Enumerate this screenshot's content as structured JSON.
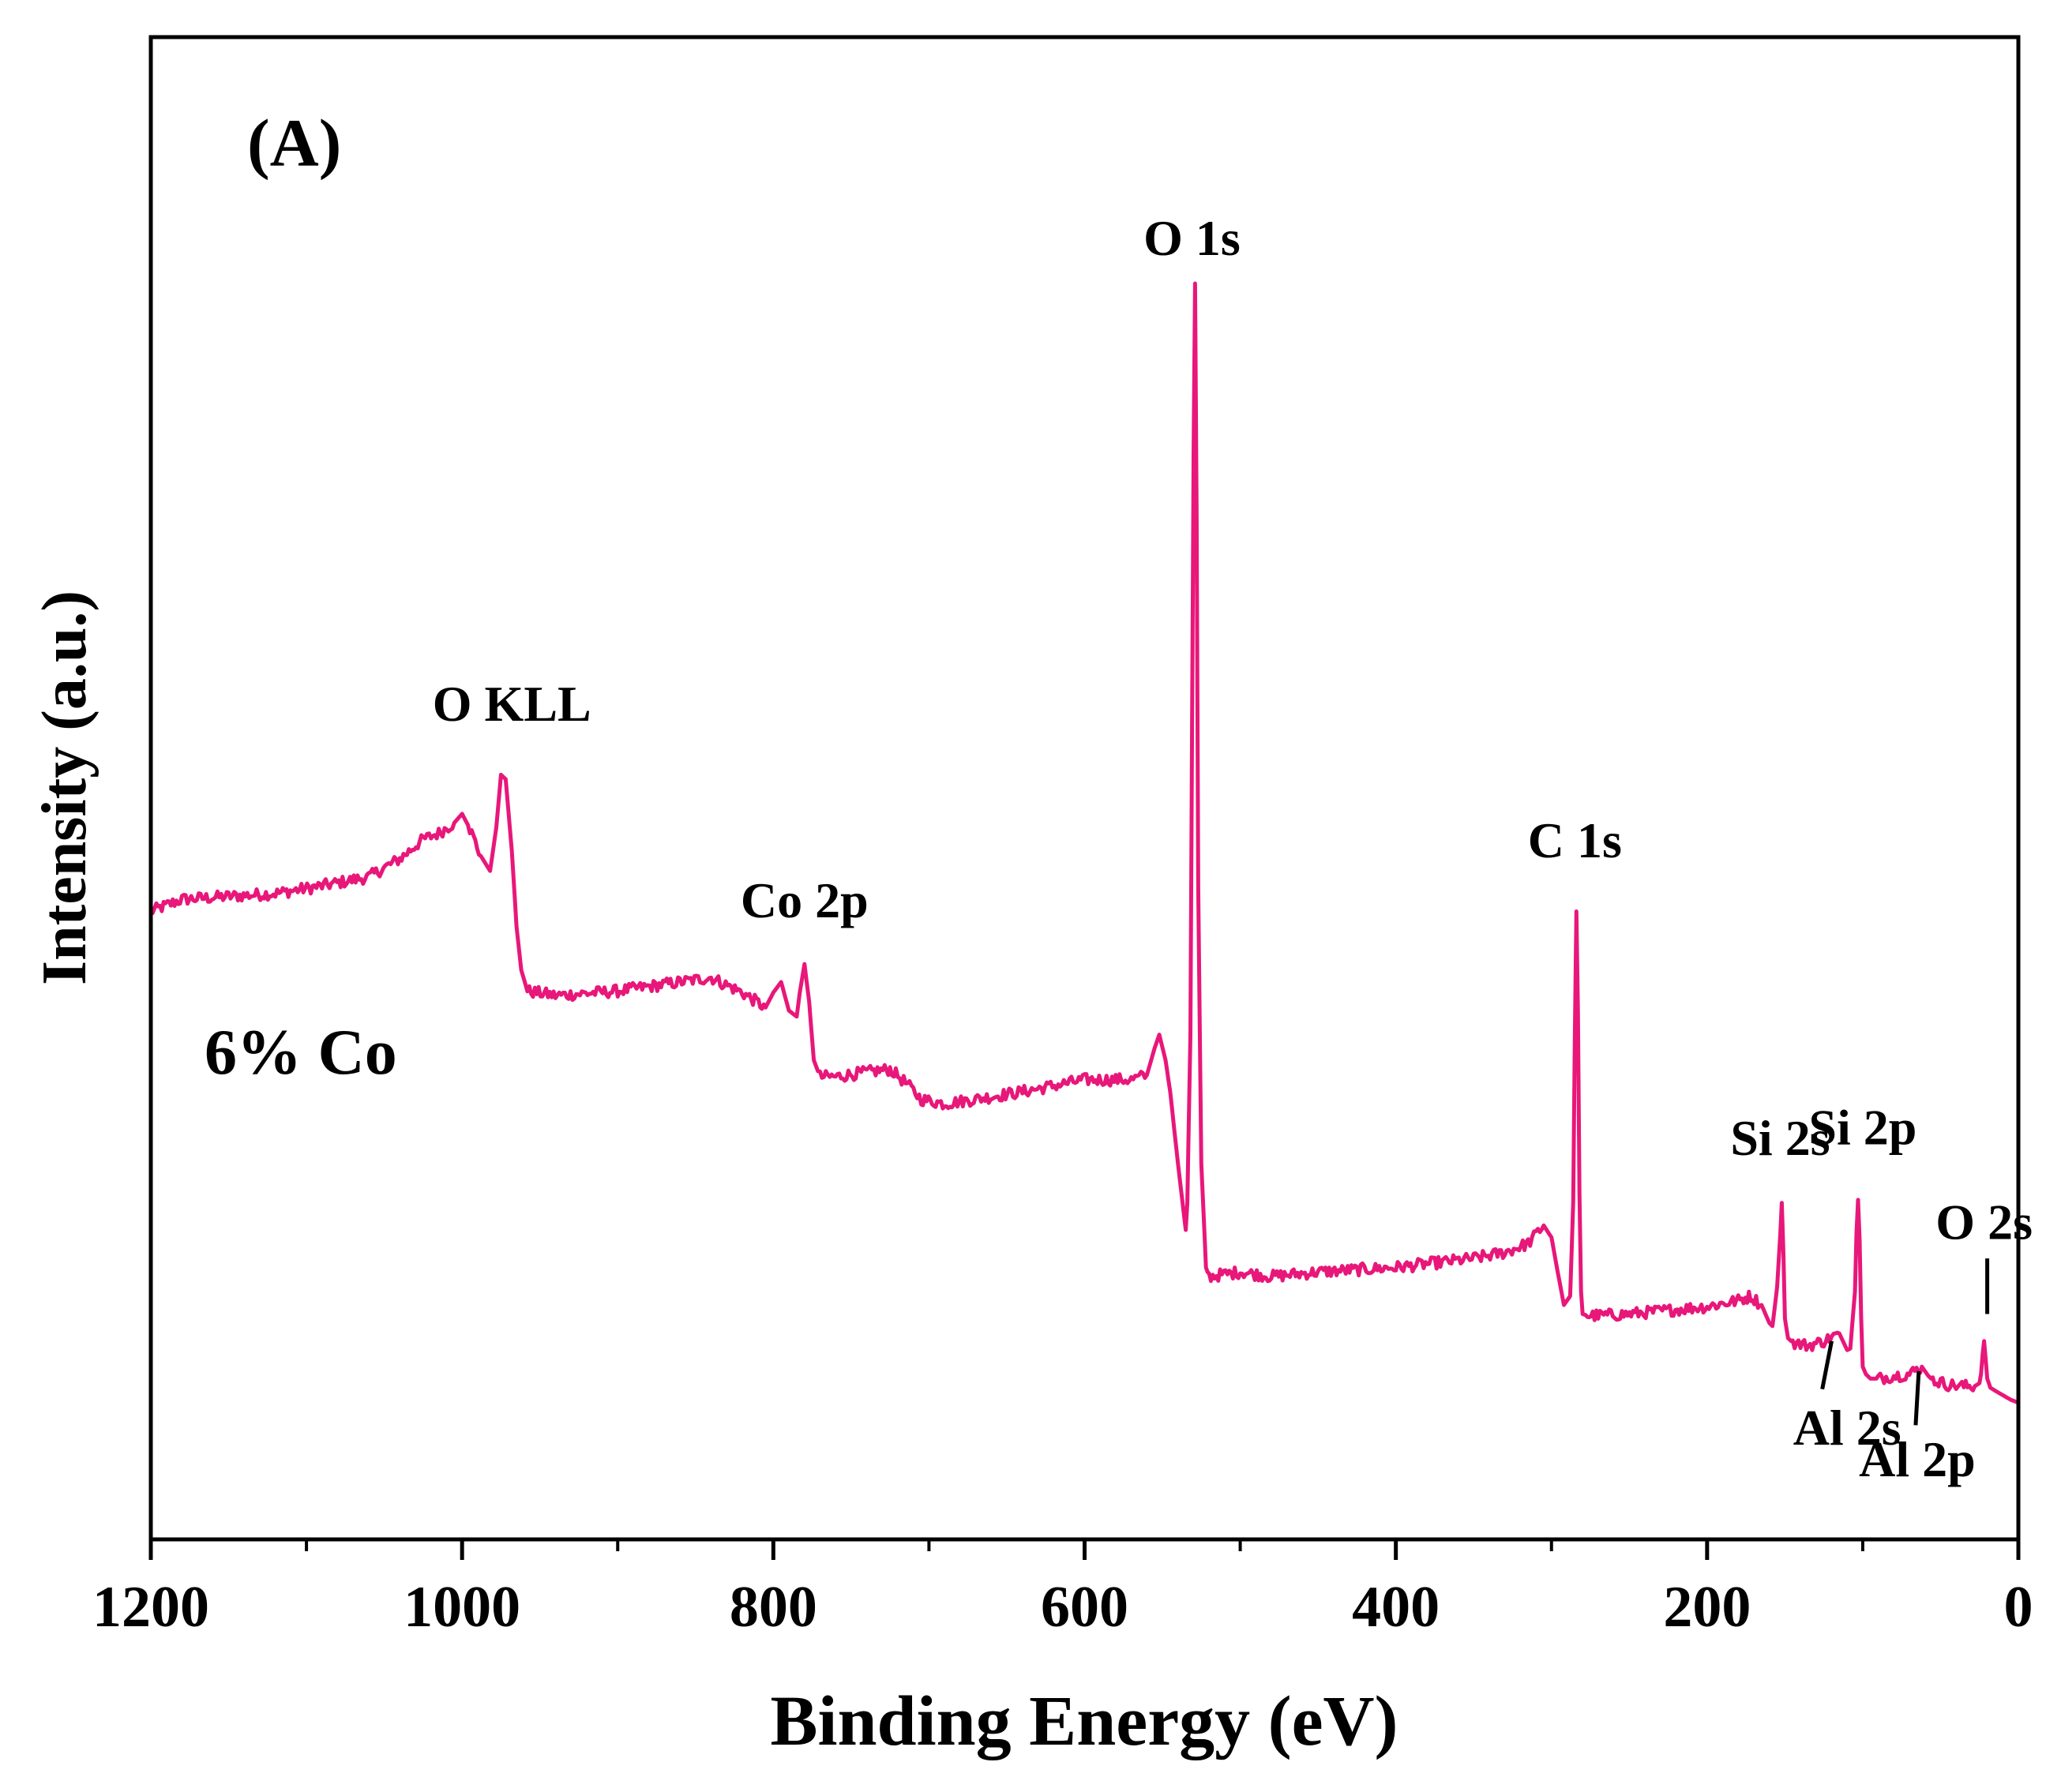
{
  "chart_data": {
    "type": "line",
    "panel_label": "(A)",
    "sample_label": "6% Co",
    "xlabel": "Binding Energy (eV)",
    "ylabel": "Intensity (a.u.)",
    "xlim": [
      1200,
      0
    ],
    "ylim": [
      0,
      100
    ],
    "x_ticks": [
      1200,
      1000,
      800,
      600,
      400,
      200,
      0
    ],
    "x_tick_labels": [
      "1200",
      "1000",
      "800",
      "600",
      "400",
      "200",
      "0"
    ],
    "x_minor_ticks": [
      1100,
      900,
      700,
      500,
      300,
      100
    ],
    "series": [
      {
        "name": "6% Co",
        "color": "#e8177a",
        "x": [
          1200,
          1180,
          1150,
          1120,
          1090,
          1060,
          1040,
          1025,
          1015,
          1005,
          1000,
          995,
          988,
          982,
          978,
          975,
          972,
          968,
          965,
          962,
          958,
          940,
          900,
          860,
          840,
          820,
          805,
          800,
          795,
          790,
          785,
          783,
          780,
          777,
          774,
          770,
          760,
          740,
          725,
          715,
          705,
          690,
          670,
          640,
          600,
          580,
          570,
          560,
          555,
          552,
          548,
          545,
          540,
          535,
          534,
          532,
          531,
          530,
          529,
          528,
          527,
          525,
          522,
          520,
          500,
          480,
          450,
          400,
          350,
          330,
          315,
          305,
          300,
          296,
          292,
          288,
          286,
          285,
          284,
          283,
          282,
          281,
          280,
          277,
          270,
          250,
          230,
          200,
          180,
          172,
          165,
          160,
          158,
          155,
          153,
          152,
          151,
          150,
          148,
          145,
          135,
          125,
          115,
          110,
          108,
          105,
          104,
          103,
          102,
          101,
          100,
          98,
          95,
          90,
          80,
          70,
          62,
          58,
          55,
          45,
          35,
          28,
          25,
          24,
          23,
          22,
          21,
          20,
          18,
          15,
          10,
          5,
          0
        ],
        "y": [
          41.8,
          42.6,
          42.8,
          43.0,
          43.5,
          44.1,
          45.3,
          46.6,
          47.0,
          47.7,
          48.3,
          47.3,
          45.5,
          44.5,
          47.4,
          50.9,
          50.6,
          45.8,
          40.8,
          37.9,
          36.5,
          36.2,
          36.5,
          37.1,
          37.4,
          36.4,
          35.4,
          36.4,
          37.1,
          35.2,
          34.8,
          36.4,
          38.3,
          35.8,
          31.9,
          30.8,
          30.8,
          31.1,
          31.3,
          30.4,
          29.3,
          29.0,
          29.3,
          29.8,
          30.6,
          30.6,
          30.6,
          30.9,
          32.7,
          33.6,
          31.9,
          29.8,
          25.0,
          20.6,
          22.4,
          33.5,
          53.1,
          72.1,
          83.6,
          68.0,
          43.5,
          25.0,
          18.1,
          17.5,
          17.8,
          17.5,
          17.8,
          18.1,
          18.7,
          19.1,
          19.7,
          20.9,
          20.1,
          17.8,
          15.6,
          16.2,
          22.5,
          33.3,
          41.8,
          35.0,
          23.0,
          16.5,
          15.0,
          14.9,
          14.9,
          15.0,
          15.2,
          15.5,
          15.9,
          16.2,
          15.6,
          14.4,
          14.2,
          16.8,
          20.3,
          22.4,
          19.2,
          14.7,
          13.4,
          13.1,
          12.9,
          13.2,
          13.7,
          12.6,
          12.7,
          16.5,
          20.4,
          22.6,
          19.9,
          14.8,
          11.5,
          11.0,
          10.7,
          10.7,
          10.9,
          11.0,
          11.5,
          10.9,
          10.6,
          10.3,
          10.2,
          10.2,
          10.4,
          11.0,
          12.3,
          13.2,
          12.0,
          10.7,
          10.1,
          9.9,
          9.6,
          9.3,
          9.1
        ]
      }
    ],
    "annotations": [
      {
        "text": "O 1s",
        "x": 531,
        "y": 85.5
      },
      {
        "text": "O KLL",
        "x": 968,
        "y": 54.5
      },
      {
        "text": "Co 2p",
        "x": 780,
        "y": 41.4
      },
      {
        "text": "C 1s",
        "x": 285,
        "y": 45.4
      },
      {
        "text": "Si 2s",
        "x": 153,
        "y": 25.6
      },
      {
        "text": "Si 2p",
        "x": 100,
        "y": 26.3
      },
      {
        "text": "O 2s",
        "x": 22,
        "y": 20.0
      },
      {
        "text": "Al 2s",
        "x": 110,
        "y": 6.3
      },
      {
        "text": "Al 2p",
        "x": 65,
        "y": 4.2
      }
    ],
    "leaders": [
      {
        "label": "O 2s",
        "x1": 20,
        "y1": 18.7,
        "x2": 20,
        "y2": 15.0
      },
      {
        "label": "Al 2s",
        "x1": 120,
        "y1": 13.2,
        "x2": 126,
        "y2": 10.0
      },
      {
        "label": "Al 2p",
        "x1": 64,
        "y1": 11.2,
        "x2": 66,
        "y2": 7.6
      }
    ]
  }
}
